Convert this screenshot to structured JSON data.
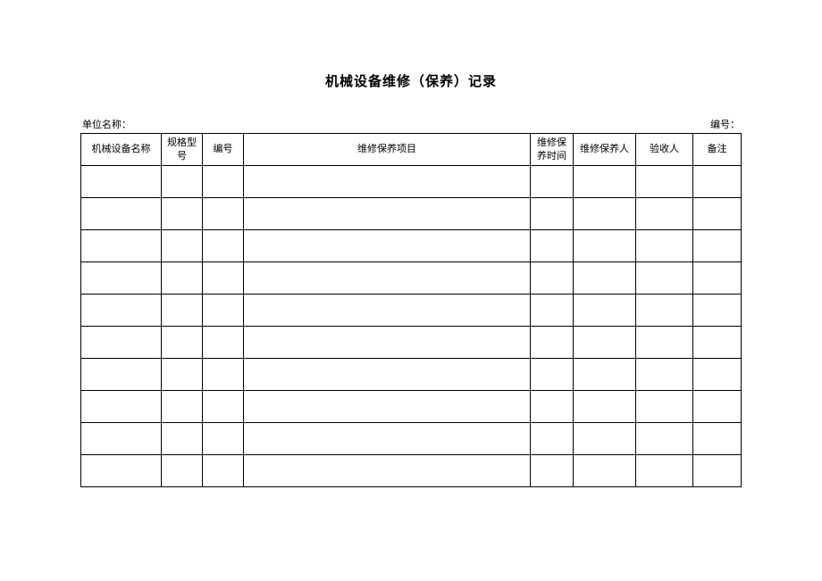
{
  "title": "机械设备维修（保养）记录",
  "header": {
    "left_label": "单位名称：",
    "right_label": "编号："
  },
  "table": {
    "columns": [
      "机械设备名称",
      "规格型号",
      "编号",
      "维修保养项目",
      "维修保养时间",
      "维修保养人",
      "验收人",
      "备注"
    ],
    "row_count": 10,
    "col_classes": [
      "col-name",
      "col-spec",
      "col-num",
      "col-item",
      "col-time",
      "col-person",
      "col-inspector",
      "col-remark"
    ],
    "border_color": "#000000",
    "background_color": "#ffffff",
    "font_size": 11,
    "header_row_height": 36,
    "body_row_height": 36
  }
}
